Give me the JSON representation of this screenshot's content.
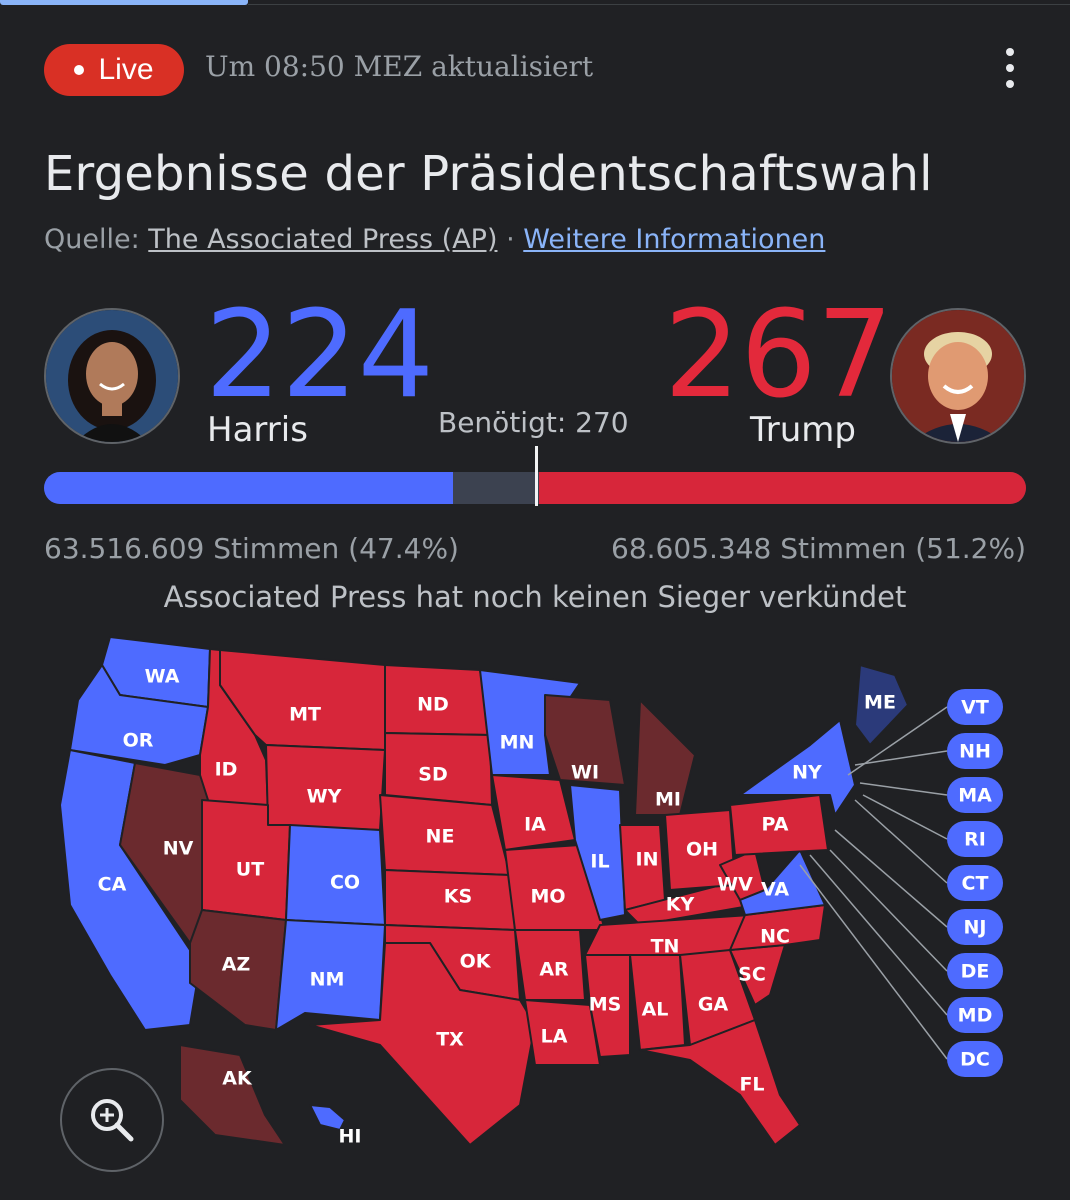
{
  "header": {
    "live_label": "Live",
    "updated": "Um 08:50 MEZ aktualisiert"
  },
  "title": "Ergebnisse der Präsidentschaftswahl",
  "source": {
    "prefix": "Quelle:",
    "ap_label": "The Associated Press (AP)",
    "separator": "·",
    "more_label": "Weitere Informationen"
  },
  "candidates": {
    "harris": {
      "name": "Harris",
      "electoral_votes": "224",
      "popular_votes": "63.516.609 Stimmen (47.4%)",
      "color": "#4e6bff"
    },
    "trump": {
      "name": "Trump",
      "electoral_votes": "267",
      "popular_votes": "68.605.348 Stimmen (51.2%)",
      "color": "#d7263a"
    }
  },
  "needed_label": "Benötigt: 270",
  "bar": {
    "total": 538,
    "dem": 224,
    "rep": 267,
    "needed": 270
  },
  "note": "Associated Press hat noch keinen Sieger verkündet",
  "map": {
    "colors": {
      "dem": "#4e6bff",
      "rep": "#d7263a",
      "pending": "#6b2a2e",
      "dem_leaning": "#2b3a7a"
    },
    "states": [
      {
        "code": "WA",
        "status": "dem"
      },
      {
        "code": "OR",
        "status": "dem"
      },
      {
        "code": "CA",
        "status": "dem"
      },
      {
        "code": "ID",
        "status": "rep"
      },
      {
        "code": "NV",
        "status": "pending"
      },
      {
        "code": "MT",
        "status": "rep"
      },
      {
        "code": "WY",
        "status": "rep"
      },
      {
        "code": "UT",
        "status": "rep"
      },
      {
        "code": "AZ",
        "status": "pending"
      },
      {
        "code": "CO",
        "status": "dem"
      },
      {
        "code": "NM",
        "status": "dem"
      },
      {
        "code": "ND",
        "status": "rep"
      },
      {
        "code": "SD",
        "status": "rep"
      },
      {
        "code": "NE",
        "status": "rep"
      },
      {
        "code": "KS",
        "status": "rep"
      },
      {
        "code": "OK",
        "status": "rep"
      },
      {
        "code": "TX",
        "status": "rep"
      },
      {
        "code": "MN",
        "status": "dem"
      },
      {
        "code": "IA",
        "status": "rep"
      },
      {
        "code": "MO",
        "status": "rep"
      },
      {
        "code": "AR",
        "status": "rep"
      },
      {
        "code": "LA",
        "status": "rep"
      },
      {
        "code": "WI",
        "status": "pending"
      },
      {
        "code": "IL",
        "status": "dem"
      },
      {
        "code": "MS",
        "status": "rep"
      },
      {
        "code": "MI",
        "status": "pending"
      },
      {
        "code": "IN",
        "status": "rep"
      },
      {
        "code": "KY",
        "status": "rep"
      },
      {
        "code": "TN",
        "status": "rep"
      },
      {
        "code": "AL",
        "status": "rep"
      },
      {
        "code": "GA",
        "status": "rep"
      },
      {
        "code": "FL",
        "status": "rep"
      },
      {
        "code": "SC",
        "status": "rep"
      },
      {
        "code": "NC",
        "status": "rep"
      },
      {
        "code": "OH",
        "status": "rep"
      },
      {
        "code": "WV",
        "status": "rep"
      },
      {
        "code": "VA",
        "status": "dem"
      },
      {
        "code": "PA",
        "status": "rep"
      },
      {
        "code": "NY",
        "status": "dem"
      },
      {
        "code": "ME",
        "status": "dem_leaning"
      },
      {
        "code": "AK",
        "status": "pending"
      },
      {
        "code": "HI",
        "status": "dem"
      }
    ],
    "small_states": [
      "VT",
      "NH",
      "MA",
      "RI",
      "CT",
      "NJ",
      "DE",
      "MD",
      "DC"
    ]
  }
}
